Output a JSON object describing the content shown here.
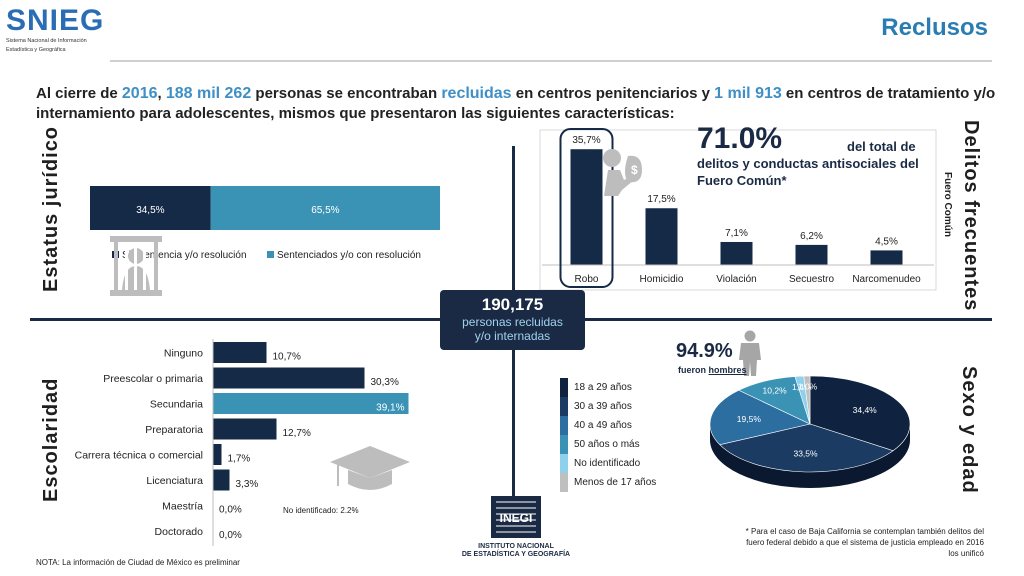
{
  "header": {
    "logo_text": "SNIEG",
    "logo_sub1": "Sistema Nacional de Información",
    "logo_sub2": "Estadística y Geográfica",
    "title": "Reclusos"
  },
  "intro": {
    "p1": "Al cierre de ",
    "year": "2016",
    "p2": ", ",
    "count": "188 mil 262",
    "p3": " personas se encontraban ",
    "status": "recluidas",
    "p4": " en centros penitenciarios y ",
    "count2": "1 mil 913",
    "p5": " en centros de tratamiento y/o internamiento para adolescentes, mismos que presentaron las siguientes características:"
  },
  "sections": {
    "estatus": "Estatus jurídico",
    "delitos": "Delitos frecuentes",
    "delitos_sub": "Fuero Común",
    "escolaridad": "Escolaridad",
    "sexo": "Sexo y edad"
  },
  "center": {
    "number": "190,175",
    "line1": "personas recluidas",
    "line2": "y/o internadas"
  },
  "delitos_highlight": {
    "pct": "71.0%",
    "desc": "del total de delitos y conductas antisociales del Fuero Común*"
  },
  "sexo_highlight": {
    "pct": "94.9%",
    "prefix": "fueron ",
    "word": "hombres"
  },
  "notes": {
    "no_identificado": "No identificado: 2.2%",
    "footnote": "* Para el caso de Baja California se contemplan también delitos del fuero federal debido a que el sistema de justicia empleado en 2016 los unificó",
    "nota": "NOTA: La información de Ciudad de México es preliminar"
  },
  "inegi": {
    "mark": "INEGI",
    "line1": "INSTITUTO NACIONAL",
    "line2": "DE ESTADÍSTICA Y GEOGRAFÍA"
  },
  "colors": {
    "navy": "#152a47",
    "teal": "#3a93b5",
    "accent": "#3e8fc6"
  },
  "chart_data": [
    {
      "type": "bar",
      "orientation": "stacked-horizontal",
      "series": [
        {
          "name": "Sin sentencia y/o resolución",
          "values": [
            34.5
          ],
          "label": "34,5%",
          "color": "#152a47"
        },
        {
          "name": "Sentenciados y/o con resolución",
          "values": [
            65.5
          ],
          "label": "65,5%",
          "color": "#3a93b5"
        }
      ],
      "legend": "bottom"
    },
    {
      "type": "bar",
      "categories": [
        "Robo",
        "Homicidio",
        "Violación",
        "Secuestro",
        "Narcomenudeo"
      ],
      "values": [
        35.7,
        17.5,
        7.1,
        6.2,
        4.5
      ],
      "labels": [
        "35,7%",
        "17,5%",
        "7,1%",
        "6,2%",
        "4,5%"
      ],
      "highlight": "Robo"
    },
    {
      "type": "bar",
      "orientation": "horizontal",
      "categories": [
        "Ninguno",
        "Preescolar o primaria",
        "Secundaria",
        "Preparatoria",
        "Carrera técnica o comercial",
        "Licenciatura",
        "Maestría",
        "Doctorado"
      ],
      "values": [
        10.7,
        30.3,
        39.1,
        12.7,
        1.7,
        3.3,
        0.0,
        0.0
      ],
      "labels": [
        "10,7%",
        "30,3%",
        "39,1%",
        "12,7%",
        "1,7%",
        "3,3%",
        "0,0%",
        "0,0%"
      ],
      "highlight": "Secundaria"
    },
    {
      "type": "pie",
      "style": "3d",
      "categories": [
        "18 a 29 años",
        "30 a 39 años",
        "40 a 49 años",
        "50 años o más",
        "No identificado",
        "Menos de 17 años"
      ],
      "values": [
        34.4,
        33.5,
        19.5,
        10.2,
        1.4,
        1.0
      ],
      "labels": [
        "34,4%",
        "33,5%",
        "19,5%",
        "10,2%",
        "1,4%",
        "1,0%"
      ],
      "colors": [
        "#0f2340",
        "#1b3b63",
        "#2c6ea0",
        "#3a93b5",
        "#8fd0ec",
        "#bfbfbf"
      ],
      "legend": "left"
    }
  ]
}
